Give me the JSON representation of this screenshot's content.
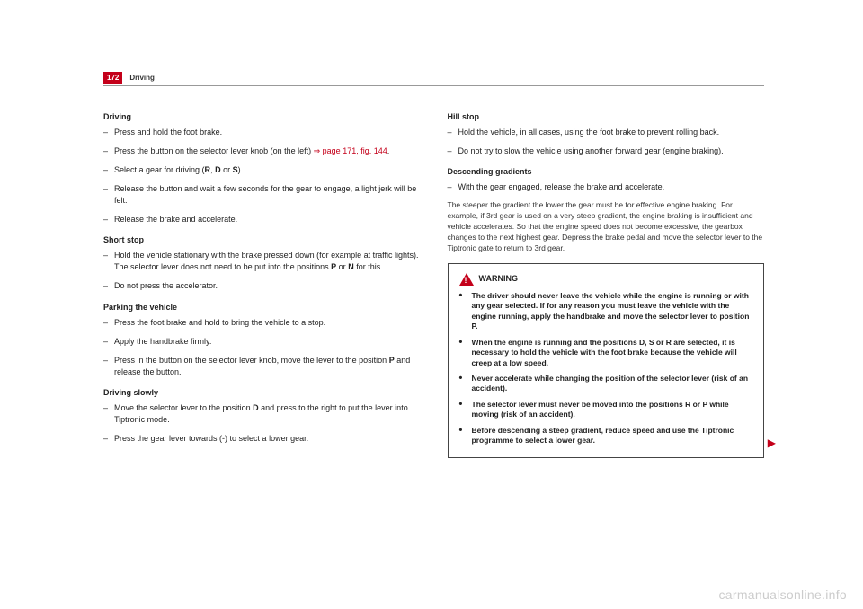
{
  "header": {
    "page_number": "172",
    "title": "Driving"
  },
  "left": {
    "s1_title": "Driving",
    "s1_i1": "Press and hold the foot brake.",
    "s1_i2a": "Press the button on the selector lever knob (on the left) ",
    "s1_i2_ref": "⇒ page 171, fig. 144",
    "s1_i2b": ".",
    "s1_i3a": "Select a gear for driving (",
    "s1_i3_r": "R",
    "s1_i3_c1": ", ",
    "s1_i3_d": "D",
    "s1_i3_c2": " or ",
    "s1_i3_s": "S",
    "s1_i3b": ").",
    "s1_i4": "Release the button and wait a few seconds for the gear to engage, a light jerk will be felt.",
    "s1_i5": "Release the brake and accelerate.",
    "s2_title": "Short stop",
    "s2_i1a": "Hold the vehicle stationary with the brake pressed down (for example at traffic lights). The selector lever does not need to be put into the positions ",
    "s2_i1_p": "P",
    "s2_i1_or": " or ",
    "s2_i1_n": "N",
    "s2_i1b": " for this.",
    "s2_i2": "Do not press the accelerator.",
    "s3_title": "Parking the vehicle",
    "s3_i1": "Press the foot brake and hold to bring the vehicle to a stop.",
    "s3_i2": "Apply the handbrake firmly.",
    "s3_i3a": "Press in the button on the selector lever knob, move the lever to the position ",
    "s3_i3_p": "P",
    "s3_i3b": " and release the button.",
    "s4_title": "Driving slowly",
    "s4_i1a": "Move the selector lever to the position ",
    "s4_i1_d": "D",
    "s4_i1b": " and press to the right to put the lever into Tiptronic mode.",
    "s4_i2": "Press the gear lever towards (-) to select a lower gear."
  },
  "right": {
    "s5_title": "Hill stop",
    "s5_i1": "Hold the vehicle, in all cases, using the foot brake to prevent rolling back.",
    "s5_i2": "Do not try to slow the vehicle using another forward gear (engine braking).",
    "s6_title": "Descending gradients",
    "s6_i1": "With the gear engaged, release the brake and accelerate.",
    "para": "The steeper the gradient the lower the gear must be for effective engine braking. For example, if 3rd gear is used on a very steep gradient, the engine braking is insufficient and vehicle accelerates. So that the engine speed does not become excessive, the gearbox changes to the next highest gear. Depress the brake pedal and move the selector lever to the Tiptronic gate to return to 3rd gear.",
    "warn_title": "WARNING",
    "w1": "The driver should never leave the vehicle while the engine is running or with any gear selected. If for any reason you must leave the vehicle with the engine running, apply the handbrake and move the selector lever to position P.",
    "w2": "When the engine is running and the positions D, S or R are selected, it is necessary to hold the vehicle with the foot brake because the vehicle will creep at a low speed.",
    "w3": "Never accelerate while changing the position of the selector lever (risk of an accident).",
    "w4": "The selector lever must never be moved into the positions R or P while moving (risk of an accident).",
    "w5": "Before descending a steep gradient, reduce speed and use the Tiptronic programme to select a lower gear."
  },
  "watermark": "carmanualsonline.info"
}
